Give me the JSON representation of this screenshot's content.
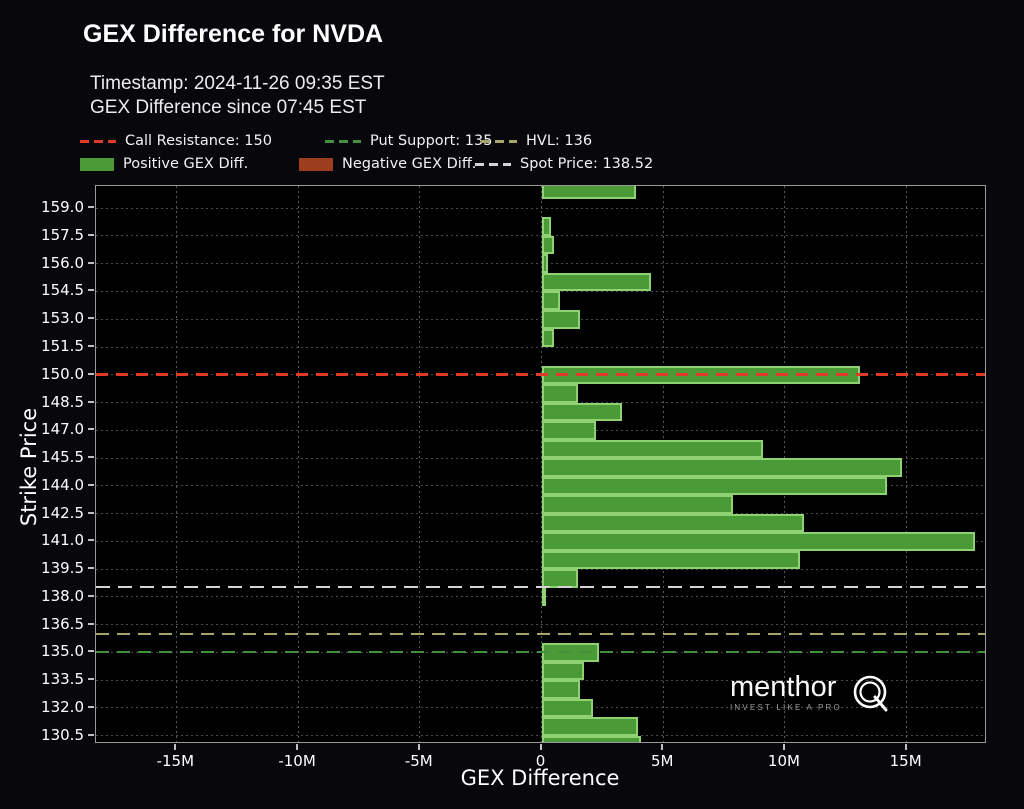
{
  "header": {
    "title": "GEX Difference for NVDA",
    "timestamp_line": "Timestamp: 2024-11-26 09:35 EST",
    "since_line": "GEX Difference since 07:45 EST"
  },
  "legend": {
    "row1": [
      {
        "label": "Call Resistance: 150",
        "color": "#e03a28",
        "style": "dash"
      },
      {
        "label": "Put Support: 135",
        "color": "#43903f",
        "style": "dash"
      },
      {
        "label": "HVL: 136",
        "color": "#a6a66a",
        "style": "dash"
      }
    ],
    "row2": [
      {
        "label": "Positive GEX Diff.",
        "color": "#4a9a38",
        "style": "patch"
      },
      {
        "label": "Negative GEX Diff.",
        "color": "#9c3d1e",
        "style": "patch"
      },
      {
        "label": "Spot Price: 138.52",
        "color": "#d4d4d4",
        "style": "dash"
      }
    ]
  },
  "watermark": {
    "brand": "menthor",
    "q_letter": "Q",
    "tagline": "INVEST LIKE A PRO"
  },
  "chart_data": {
    "type": "bar",
    "orientation": "horizontal",
    "title": "GEX Difference for NVDA",
    "xlabel": "GEX Difference",
    "ylabel": "Strike Price",
    "values_unit": "millions",
    "xlim_m": [
      -18.3,
      18.3
    ],
    "ylim": [
      130.05,
      160.2
    ],
    "grid": true,
    "xticks": [
      {
        "v": -15,
        "label": "-15M"
      },
      {
        "v": -10,
        "label": "-10M"
      },
      {
        "v": -5,
        "label": "-5M"
      },
      {
        "v": 0,
        "label": "0"
      },
      {
        "v": 5,
        "label": "5M"
      },
      {
        "v": 10,
        "label": "10M"
      },
      {
        "v": 15,
        "label": "15M"
      }
    ],
    "yticks": [
      159.0,
      157.5,
      156.0,
      154.5,
      153.0,
      151.5,
      150.0,
      148.5,
      147.0,
      145.5,
      144.0,
      142.5,
      141.0,
      139.5,
      138.0,
      136.5,
      135.0,
      133.5,
      132.0,
      130.5
    ],
    "bars": [
      {
        "strike": 160,
        "gex_diff_m": 3.9
      },
      {
        "strike": 159,
        "gex_diff_m": 0
      },
      {
        "strike": 158,
        "gex_diff_m": 0.4
      },
      {
        "strike": 157,
        "gex_diff_m": 0.5
      },
      {
        "strike": 156,
        "gex_diff_m": 0.25
      },
      {
        "strike": 155,
        "gex_diff_m": 4.5
      },
      {
        "strike": 154,
        "gex_diff_m": 0.75
      },
      {
        "strike": 153,
        "gex_diff_m": 1.6
      },
      {
        "strike": 152,
        "gex_diff_m": 0.5
      },
      {
        "strike": 151,
        "gex_diff_m": 0
      },
      {
        "strike": 150,
        "gex_diff_m": 13.1
      },
      {
        "strike": 149,
        "gex_diff_m": 1.5
      },
      {
        "strike": 148,
        "gex_diff_m": 3.3
      },
      {
        "strike": 147,
        "gex_diff_m": 2.25
      },
      {
        "strike": 146,
        "gex_diff_m": 9.1
      },
      {
        "strike": 145,
        "gex_diff_m": 14.8
      },
      {
        "strike": 144,
        "gex_diff_m": 14.2
      },
      {
        "strike": 143,
        "gex_diff_m": 7.85
      },
      {
        "strike": 142,
        "gex_diff_m": 10.8
      },
      {
        "strike": 141,
        "gex_diff_m": 17.8
      },
      {
        "strike": 140,
        "gex_diff_m": 10.6
      },
      {
        "strike": 139,
        "gex_diff_m": 1.5
      },
      {
        "strike": 138,
        "gex_diff_m": 0.15
      },
      {
        "strike": 137,
        "gex_diff_m": 0
      },
      {
        "strike": 136,
        "gex_diff_m": 0
      },
      {
        "strike": 135,
        "gex_diff_m": 2.35
      },
      {
        "strike": 134,
        "gex_diff_m": 1.75
      },
      {
        "strike": 133,
        "gex_diff_m": 1.6
      },
      {
        "strike": 132,
        "gex_diff_m": 2.1
      },
      {
        "strike": 131,
        "gex_diff_m": 3.95
      },
      {
        "strike": 130,
        "gex_diff_m": 4.1
      }
    ],
    "levels": [
      {
        "name": "call_resistance",
        "value": 150,
        "color": "#e03a28",
        "thickness": 3,
        "dash": 12,
        "gap": 8
      },
      {
        "name": "spot_price",
        "value": 138.52,
        "color": "#d4d4d4",
        "thickness": 2,
        "dash": 14,
        "gap": 8
      },
      {
        "name": "hvl",
        "value": 136,
        "color": "#a6a66a",
        "thickness": 2,
        "dash": 13,
        "gap": 8
      },
      {
        "name": "put_support",
        "value": 135,
        "color": "#43903f",
        "thickness": 2,
        "dash": 13,
        "gap": 8
      }
    ],
    "bar_color": "#4a9a38",
    "bar_edge_color": "#8fd271",
    "negative_bar_color": "#9c3d1e",
    "legend_position": "top"
  }
}
